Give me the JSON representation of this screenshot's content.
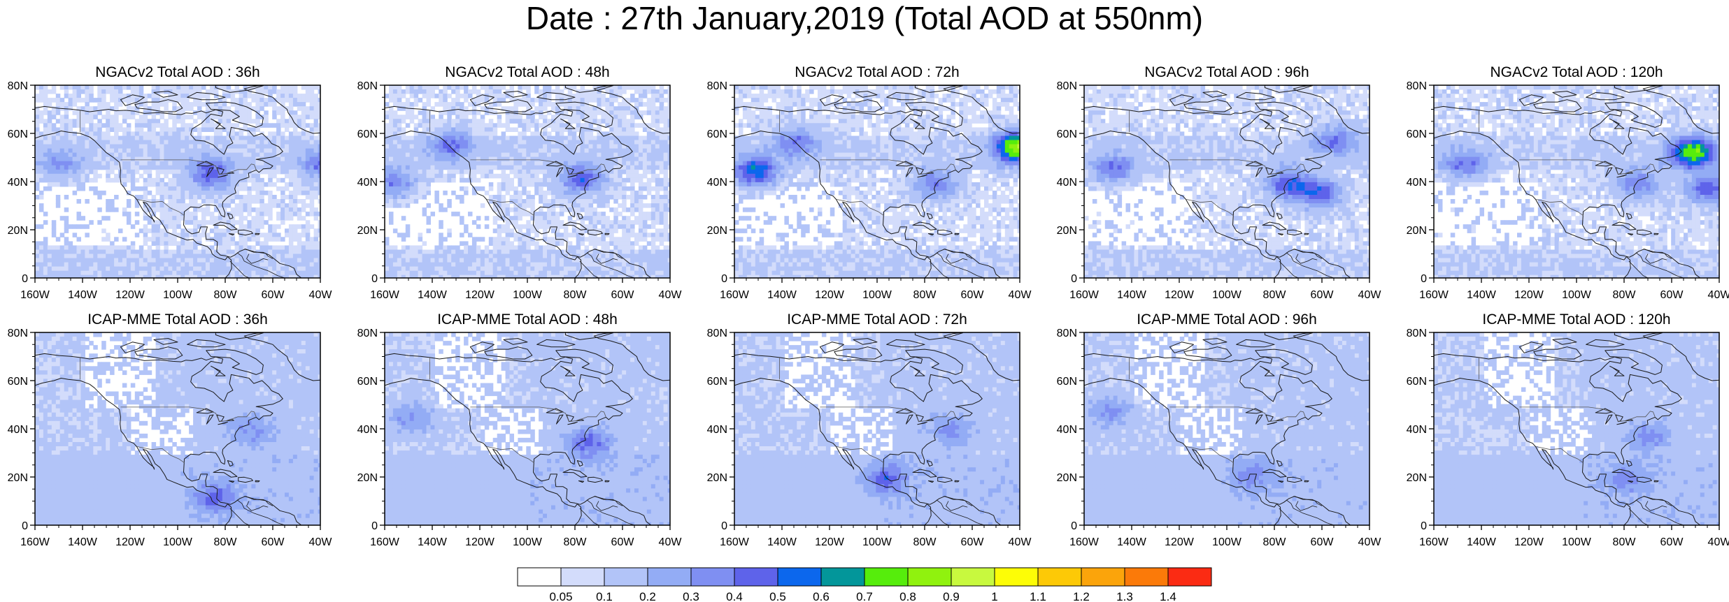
{
  "title": "Date : 27th January,2019 (Total AOD at 550nm)",
  "axes": {
    "lat_ticks": [
      "80N",
      "60N",
      "40N",
      "20N",
      "0"
    ],
    "lon_ticks": [
      "160W",
      "140W",
      "120W",
      "100W",
      "80W",
      "60W",
      "40W"
    ],
    "lat_range": [
      0,
      80
    ],
    "lon_range": [
      -160,
      -40
    ]
  },
  "panels": [
    {
      "title": "NGACv2 Total AOD : 36h"
    },
    {
      "title": "NGACv2 Total AOD : 48h"
    },
    {
      "title": "NGACv2 Total AOD : 72h"
    },
    {
      "title": "NGACv2 Total AOD : 96h"
    },
    {
      "title": "NGACv2 Total AOD : 120h"
    },
    {
      "title": "ICAP-MME Total AOD : 36h"
    },
    {
      "title": "ICAP-MME Total AOD : 48h"
    },
    {
      "title": "ICAP-MME Total AOD : 72h"
    },
    {
      "title": "ICAP-MME Total AOD : 96h"
    },
    {
      "title": "ICAP-MME Total AOD : 120h"
    }
  ],
  "colorbar": {
    "labels": [
      "0.05",
      "0.1",
      "0.2",
      "0.3",
      "0.4",
      "0.5",
      "0.6",
      "0.7",
      "0.8",
      "0.9",
      "1",
      "1.1",
      "1.2",
      "1.3",
      "1.4"
    ],
    "colors": [
      "#ffffff",
      "#d3dcfb",
      "#b2c4f8",
      "#93acf5",
      "#7f8ff2",
      "#5e63ea",
      "#0c67ed",
      "#03969a",
      "#56ed0c",
      "#90f20e",
      "#c8f93e",
      "#fdfd06",
      "#fdc906",
      "#fba40b",
      "#fb7a09",
      "#fb2b13"
    ]
  },
  "chart_data": {
    "type": "heatmap",
    "title": "Date : 27th January,2019 (Total AOD at 550nm)",
    "variable": "Total AOD at 550nm",
    "date": "27th January,2019",
    "lon_range": [
      -160,
      -40
    ],
    "lat_range": [
      0,
      80
    ],
    "levels": [
      0.05,
      0.1,
      0.2,
      0.3,
      0.4,
      0.5,
      0.6,
      0.7,
      0.8,
      0.9,
      1,
      1.1,
      1.2,
      1.3,
      1.4
    ],
    "panels": [
      {
        "model": "NGACv2",
        "lead": "36h",
        "features": [
          {
            "lon": -87,
            "lat": 44,
            "aod": 0.4
          },
          {
            "lon": -40,
            "lat": 48,
            "aod": 0.3
          },
          {
            "lon": -150,
            "lat": 48,
            "aod": 0.2
          }
        ]
      },
      {
        "model": "NGACv2",
        "lead": "48h",
        "features": [
          {
            "lon": -78,
            "lat": 42,
            "aod": 0.4
          },
          {
            "lon": -157,
            "lat": 40,
            "aod": 0.3
          },
          {
            "lon": -133,
            "lat": 56,
            "aod": 0.3
          }
        ]
      },
      {
        "model": "NGACv2",
        "lead": "72h",
        "features": [
          {
            "lon": -152,
            "lat": 45,
            "aod": 0.5
          },
          {
            "lon": -42,
            "lat": 55,
            "aod": 0.8
          },
          {
            "lon": -135,
            "lat": 57,
            "aod": 0.3
          },
          {
            "lon": -76,
            "lat": 40,
            "aod": 0.3
          }
        ]
      },
      {
        "model": "NGACv2",
        "lead": "96h",
        "features": [
          {
            "lon": -148,
            "lat": 46,
            "aod": 0.3
          },
          {
            "lon": -75,
            "lat": 40,
            "aod": 0.4
          },
          {
            "lon": -62,
            "lat": 36,
            "aod": 0.4
          },
          {
            "lon": -55,
            "lat": 58,
            "aod": 0.3
          }
        ]
      },
      {
        "model": "NGACv2",
        "lead": "120h",
        "features": [
          {
            "lon": -52,
            "lat": 53,
            "aod": 0.7
          },
          {
            "lon": -148,
            "lat": 48,
            "aod": 0.3
          },
          {
            "lon": -45,
            "lat": 38,
            "aod": 0.4
          },
          {
            "lon": -75,
            "lat": 40,
            "aod": 0.3
          }
        ]
      },
      {
        "model": "ICAP-MME",
        "lead": "36h",
        "features": [
          {
            "lon": -85,
            "lat": 12,
            "aod": 0.3
          },
          {
            "lon": -70,
            "lat": 40,
            "aod": 0.2
          }
        ]
      },
      {
        "model": "ICAP-MME",
        "lead": "48h",
        "features": [
          {
            "lon": -75,
            "lat": 35,
            "aod": 0.3
          },
          {
            "lon": -150,
            "lat": 45,
            "aod": 0.2
          }
        ]
      },
      {
        "model": "ICAP-MME",
        "lead": "72h",
        "features": [
          {
            "lon": -97,
            "lat": 20,
            "aod": 0.3
          },
          {
            "lon": -70,
            "lat": 40,
            "aod": 0.2
          }
        ]
      },
      {
        "model": "ICAP-MME",
        "lead": "96h",
        "features": [
          {
            "lon": -90,
            "lat": 22,
            "aod": 0.2
          },
          {
            "lon": -150,
            "lat": 48,
            "aod": 0.2
          }
        ]
      },
      {
        "model": "ICAP-MME",
        "lead": "120h",
        "features": [
          {
            "lon": -70,
            "lat": 38,
            "aod": 0.2
          },
          {
            "lon": -80,
            "lat": 20,
            "aod": 0.2
          }
        ]
      }
    ]
  }
}
